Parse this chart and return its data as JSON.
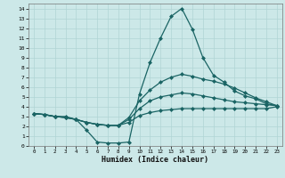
{
  "xlabel": "Humidex (Indice chaleur)",
  "bg_color": "#cce8e8",
  "grid_color": "#b0d4d4",
  "line_color": "#1a6464",
  "marker": "D",
  "markersize": 2.0,
  "linewidth": 0.9,
  "xlim": [
    -0.5,
    23.5
  ],
  "ylim": [
    0,
    14.5
  ],
  "yticks": [
    0,
    1,
    2,
    3,
    4,
    5,
    6,
    7,
    8,
    9,
    10,
    11,
    12,
    13,
    14
  ],
  "xticks": [
    0,
    1,
    2,
    3,
    4,
    5,
    6,
    7,
    8,
    9,
    10,
    11,
    12,
    13,
    14,
    15,
    16,
    17,
    18,
    19,
    20,
    21,
    22,
    23
  ],
  "series": {
    "max": [
      3.3,
      3.2,
      3.0,
      3.0,
      2.7,
      1.6,
      0.4,
      0.3,
      0.3,
      0.4,
      5.3,
      8.5,
      11.0,
      13.2,
      14.0,
      11.9,
      9.0,
      7.2,
      6.5,
      5.6,
      5.1,
      4.8,
      4.3,
      4.1
    ],
    "q3": [
      3.3,
      3.2,
      3.0,
      2.9,
      2.7,
      2.4,
      2.2,
      2.1,
      2.1,
      2.9,
      4.6,
      5.7,
      6.5,
      7.0,
      7.3,
      7.1,
      6.8,
      6.6,
      6.3,
      5.9,
      5.4,
      4.9,
      4.5,
      4.1
    ],
    "med": [
      3.3,
      3.2,
      3.0,
      2.9,
      2.7,
      2.4,
      2.2,
      2.1,
      2.1,
      2.7,
      3.8,
      4.6,
      5.0,
      5.2,
      5.4,
      5.3,
      5.1,
      4.9,
      4.7,
      4.5,
      4.4,
      4.3,
      4.2,
      4.1
    ],
    "q1": [
      3.3,
      3.2,
      3.0,
      2.9,
      2.7,
      2.4,
      2.2,
      2.1,
      2.1,
      2.4,
      3.1,
      3.4,
      3.6,
      3.7,
      3.8,
      3.8,
      3.8,
      3.8,
      3.8,
      3.8,
      3.8,
      3.8,
      3.8,
      4.0
    ]
  }
}
